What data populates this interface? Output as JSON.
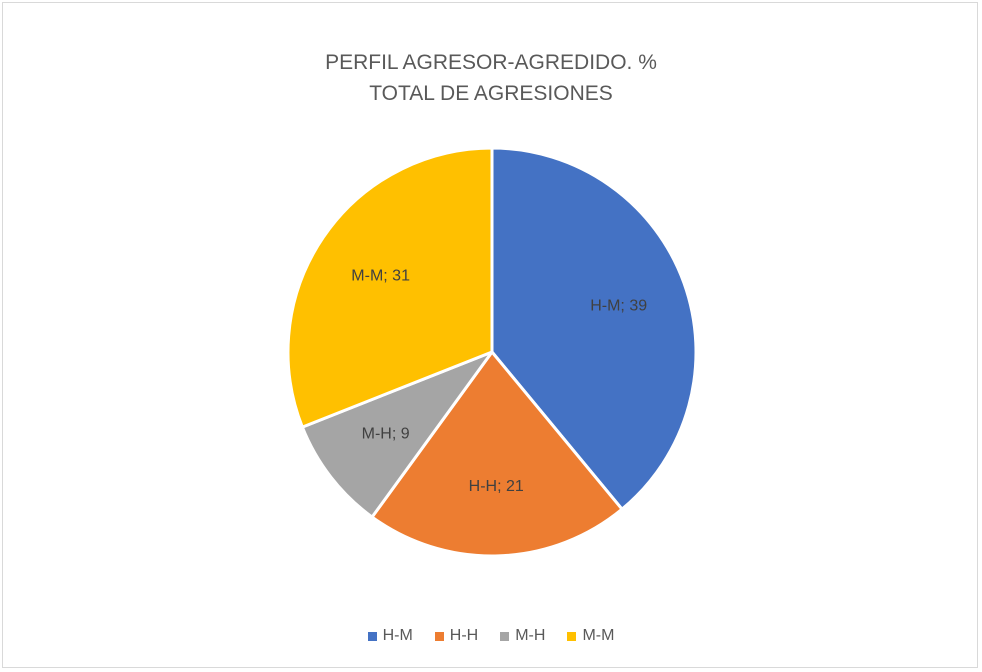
{
  "chart_data": {
    "type": "pie",
    "title": [
      "PERFIL AGRESOR-AGREDIDO. %",
      "TOTAL DE AGRESIONES"
    ],
    "label_separator": "; ",
    "categories": [
      "H-M",
      "H-H",
      "M-H",
      "M-M"
    ],
    "values": [
      39,
      21,
      9,
      31
    ],
    "colors": [
      "#4472C4",
      "#ED7D31",
      "#A5A5A5",
      "#FFC000"
    ],
    "legend_position": "bottom"
  }
}
